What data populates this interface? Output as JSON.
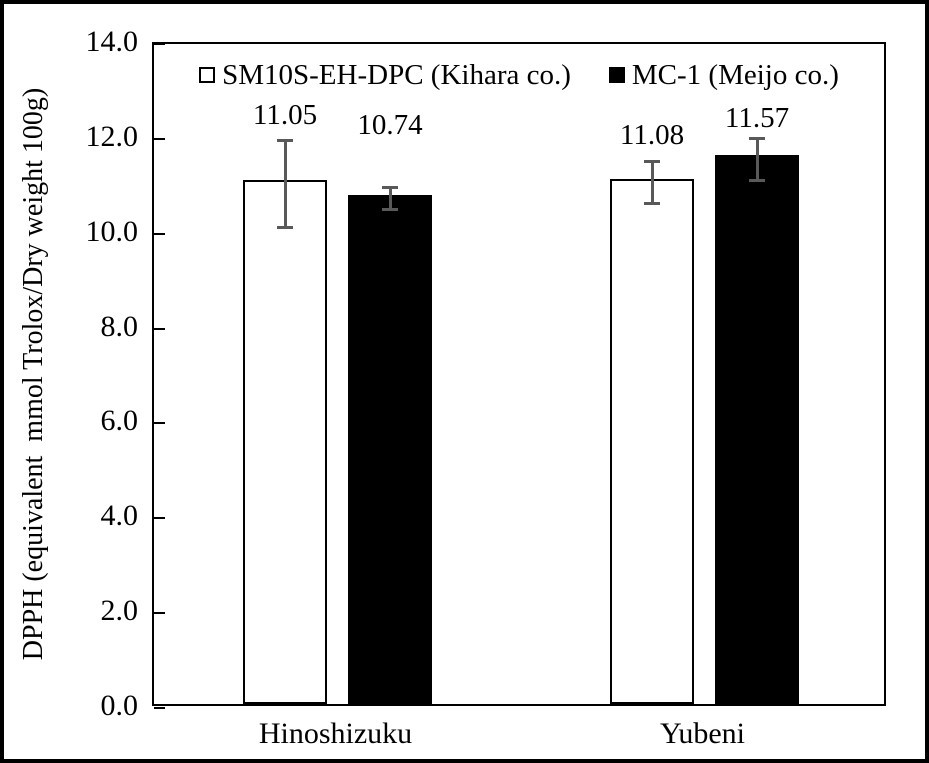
{
  "chart_data": {
    "type": "bar",
    "title": "",
    "categories": [
      "Hinoshizuku",
      "Yubeni"
    ],
    "series": [
      {
        "name": "SM10S-EH-DPC (Kihara co.)",
        "fill": "#ffffff",
        "values": [
          11.05,
          11.08
        ],
        "errors": [
          0.92,
          0.45
        ],
        "value_labels": [
          "11.05",
          "11.08"
        ],
        "label_y": [
          12.5,
          12.08
        ]
      },
      {
        "name": "MC-1 (Meijo co.)",
        "fill": "#000000",
        "values": [
          10.74,
          11.57
        ],
        "errors": [
          0.25,
          0.45
        ],
        "value_labels": [
          "10.74",
          "11.57"
        ],
        "label_y": [
          12.3,
          12.45
        ]
      }
    ],
    "xlabel": "",
    "ylabel": "DPPH (equivalent  mmol Trolox/Dry weight 100g)",
    "ylim": [
      0,
      14
    ],
    "ytick_step": 2,
    "ytick_labels": [
      "0.0",
      "2.0",
      "4.0",
      "6.0",
      "8.0",
      "10.0",
      "12.0",
      "14.0"
    ],
    "grid": false,
    "legend_position": "top-inside",
    "colors": {
      "axis": "#000000",
      "error_bar": "#595959",
      "text": "#000000",
      "background": "#ffffff"
    }
  }
}
